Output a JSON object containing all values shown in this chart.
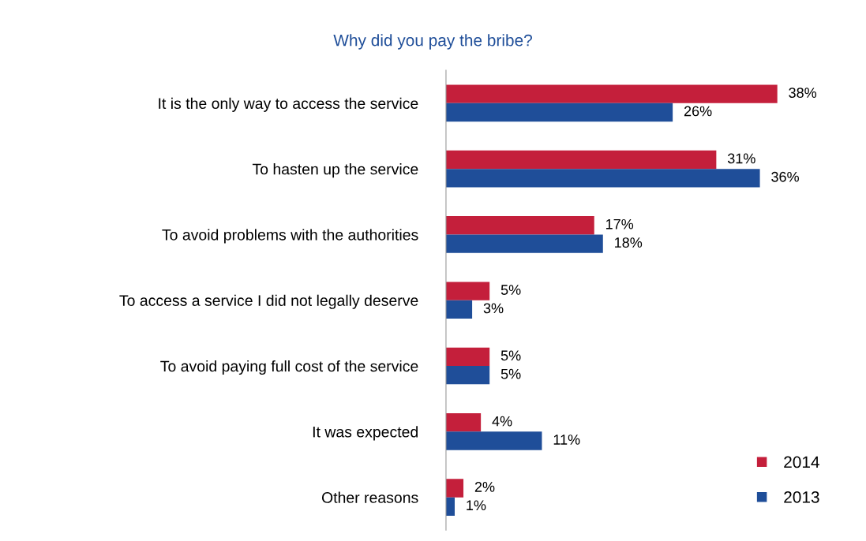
{
  "chart_data": {
    "type": "bar",
    "orientation": "horizontal",
    "title": "Why did you pay the bribe?",
    "categories": [
      "It is the only way to access the service",
      "To hasten up the service",
      "To avoid problems with the authorities",
      "To access a service I did not legally deserve",
      "To avoid paying full cost of the service",
      "It was expected",
      "Other reasons"
    ],
    "series": [
      {
        "name": "2014",
        "color": "#c41f3b",
        "values": [
          38,
          31,
          17,
          5,
          5,
          4,
          2
        ],
        "value_labels": [
          "38%",
          "31%",
          "17%",
          "5%",
          "5%",
          "4%",
          "2%"
        ]
      },
      {
        "name": "2013",
        "color": "#1f4e99",
        "values": [
          26,
          36,
          18,
          3,
          5,
          11,
          1
        ],
        "value_labels": [
          "26%",
          "36%",
          "18%",
          "3%",
          "5%",
          "11%",
          "1%"
        ]
      }
    ],
    "legend": "bottom right",
    "grid": false,
    "tick_labels": "y"
  }
}
